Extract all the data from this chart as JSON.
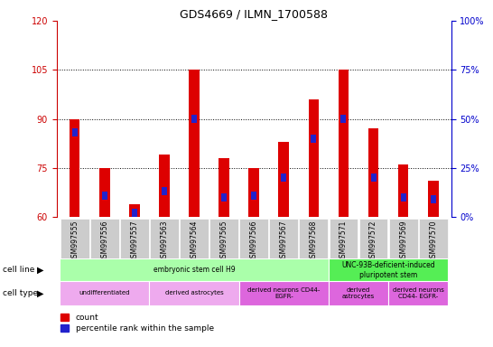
{
  "title": "GDS4669 / ILMN_1700588",
  "samples": [
    "GSM997555",
    "GSM997556",
    "GSM997557",
    "GSM997563",
    "GSM997564",
    "GSM997565",
    "GSM997566",
    "GSM997567",
    "GSM997568",
    "GSM997571",
    "GSM997572",
    "GSM997569",
    "GSM997570"
  ],
  "count_values": [
    90,
    75,
    64,
    79,
    105,
    78,
    75,
    83,
    96,
    105,
    87,
    76,
    71
  ],
  "percentile_values": [
    43,
    11,
    2,
    13,
    50,
    10,
    11,
    20,
    40,
    50,
    20,
    10,
    9
  ],
  "ylim_left": [
    60,
    120
  ],
  "ylim_right": [
    0,
    100
  ],
  "yticks_left": [
    60,
    75,
    90,
    105,
    120
  ],
  "yticks_right": [
    0,
    25,
    50,
    75,
    100
  ],
  "count_color": "#DD0000",
  "percentile_color": "#2222CC",
  "bar_bottom": 60,
  "bar_width": 0.35,
  "blue_bar_width": 0.18,
  "cell_line_data": [
    {
      "label": "embryonic stem cell H9",
      "start": 0,
      "end": 9,
      "color": "#AAFFAA"
    },
    {
      "label": "UNC-93B-deficient-induced\npluripotent stem",
      "start": 9,
      "end": 13,
      "color": "#55EE55"
    }
  ],
  "cell_type_data": [
    {
      "label": "undifferentiated",
      "start": 0,
      "end": 3,
      "color": "#EE99EE"
    },
    {
      "label": "derived astrocytes",
      "start": 3,
      "end": 6,
      "color": "#EE99EE"
    },
    {
      "label": "derived neurons CD44-\nEGFR-",
      "start": 6,
      "end": 9,
      "color": "#EE55EE"
    },
    {
      "label": "derived\nastrocytes",
      "start": 9,
      "end": 11,
      "color": "#EE55EE"
    },
    {
      "label": "derived neurons\nCD44- EGFR-",
      "start": 11,
      "end": 13,
      "color": "#EE55EE"
    }
  ],
  "legend_count_label": "count",
  "legend_pct_label": "percentile rank within the sample",
  "tick_label_color_left": "#CC0000",
  "tick_label_color_right": "#0000CC",
  "xticklabel_bg": "#CCCCCC"
}
